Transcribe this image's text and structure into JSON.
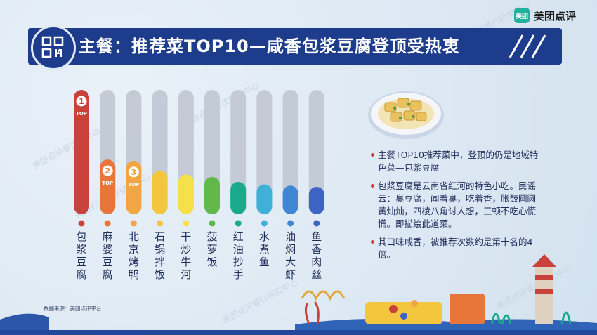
{
  "brand": {
    "icon_text": "美团",
    "name": "美团点评"
  },
  "title": "主餐：推荐菜TOP10—咸香包浆豆腐登顶受热衷",
  "watermark": "美团点评餐饮研究中心",
  "source": "数据来源：美团点评平台",
  "notes": [
    "主餐TOP10推荐菜中，登顶的仍是地域特色菜—包浆豆腐。",
    "包浆豆腐是云南省红河的特色小吃。民谣云：臭豆腐，闻着臭，吃着香，胀鼓圆圆黄灿灿，四棱八角讨人想，三顿不吃心慌慌。即描绘此道菜。",
    "其口味咸香，被推荐次数约是第十名的4倍。"
  ],
  "chart_data": {
    "type": "bar",
    "categories": [
      "包浆豆腐",
      "麻婆豆腐",
      "北京烤鸭",
      "石锅拌饭",
      "干炒牛河",
      "菠萝饭",
      "红油抄手",
      "水煮鱼",
      "油焖大虾",
      "鱼香肉丝"
    ],
    "values": [
      100,
      44,
      43,
      35,
      32,
      30,
      26,
      24,
      23,
      22
    ],
    "ylim": [
      0,
      100
    ],
    "colors": [
      "#c9413b",
      "#e8763a",
      "#f2a543",
      "#f3c63d",
      "#f5e04a",
      "#62b94a",
      "#1aa98a",
      "#3fb1d9",
      "#3f86d3",
      "#3d63c4"
    ],
    "rank_badges": [
      {
        "index": 0,
        "number": "1",
        "label": "TOP"
      },
      {
        "index": 1,
        "number": "2",
        "label": "TOP"
      },
      {
        "index": 2,
        "number": "3",
        "label": "TOP"
      }
    ]
  }
}
